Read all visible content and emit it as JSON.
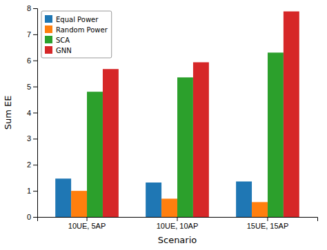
{
  "chart_data": {
    "type": "bar",
    "categories": [
      "10UE, 5AP",
      "10UE, 10AP",
      "15UE, 15AP"
    ],
    "series": [
      {
        "name": "Equal Power",
        "color": "#1f77b4",
        "values": [
          1.47,
          1.32,
          1.36
        ]
      },
      {
        "name": "Random Power",
        "color": "#ff7f0e",
        "values": [
          1.0,
          0.7,
          0.57
        ]
      },
      {
        "name": "SCA",
        "color": "#2ca02c",
        "values": [
          4.8,
          5.35,
          6.3
        ]
      },
      {
        "name": "GNN",
        "color": "#d62728",
        "values": [
          5.67,
          5.93,
          7.88
        ]
      }
    ],
    "xlabel": "Scenario",
    "ylabel": "Sum EE",
    "ylim": [
      0,
      8
    ],
    "yticks": [
      0,
      1,
      2,
      3,
      4,
      5,
      6,
      7,
      8
    ],
    "legend": "upper left"
  }
}
